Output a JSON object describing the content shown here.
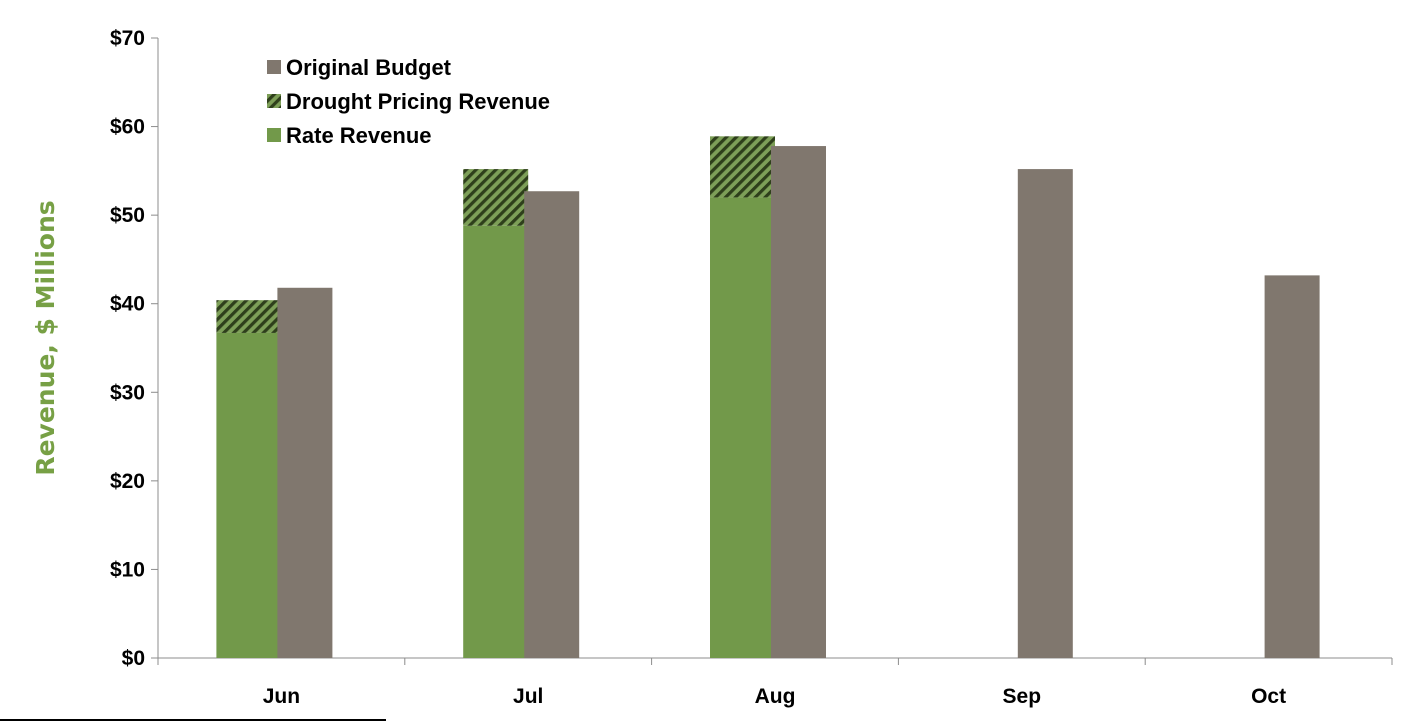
{
  "chart_data": {
    "type": "bar",
    "title": "",
    "xlabel": "",
    "ylabel": "Revenue, $ Millions",
    "categories": [
      "Jun",
      "Jul",
      "Aug",
      "Sep",
      "Oct"
    ],
    "ylim": [
      0,
      70
    ],
    "yticks": [
      0,
      10,
      20,
      30,
      40,
      50,
      60,
      70
    ],
    "ytick_labels": [
      "$0",
      "$10",
      "$20",
      "$30",
      "$40",
      "$50",
      "$60",
      "$70"
    ],
    "grid": false,
    "legend_position": "top-left",
    "legend_order": [
      "Original Budget",
      "Drought Pricing Revenue",
      "Rate Revenue"
    ],
    "stack": {
      "name": "Actual",
      "series": [
        {
          "name": "Rate Revenue",
          "values": [
            36.7,
            48.8,
            52.0,
            null,
            null
          ],
          "color": "#72994a",
          "pattern": "solid"
        },
        {
          "name": "Drought Pricing Revenue",
          "values": [
            3.7,
            6.4,
            6.9,
            null,
            null
          ],
          "color": "#4f6a2f",
          "pattern": "diagonal-hatch"
        }
      ]
    },
    "series": [
      {
        "name": "Original Budget",
        "values": [
          41.8,
          52.7,
          57.8,
          55.2,
          43.2
        ],
        "color": "#80776e",
        "pattern": "solid"
      }
    ]
  }
}
